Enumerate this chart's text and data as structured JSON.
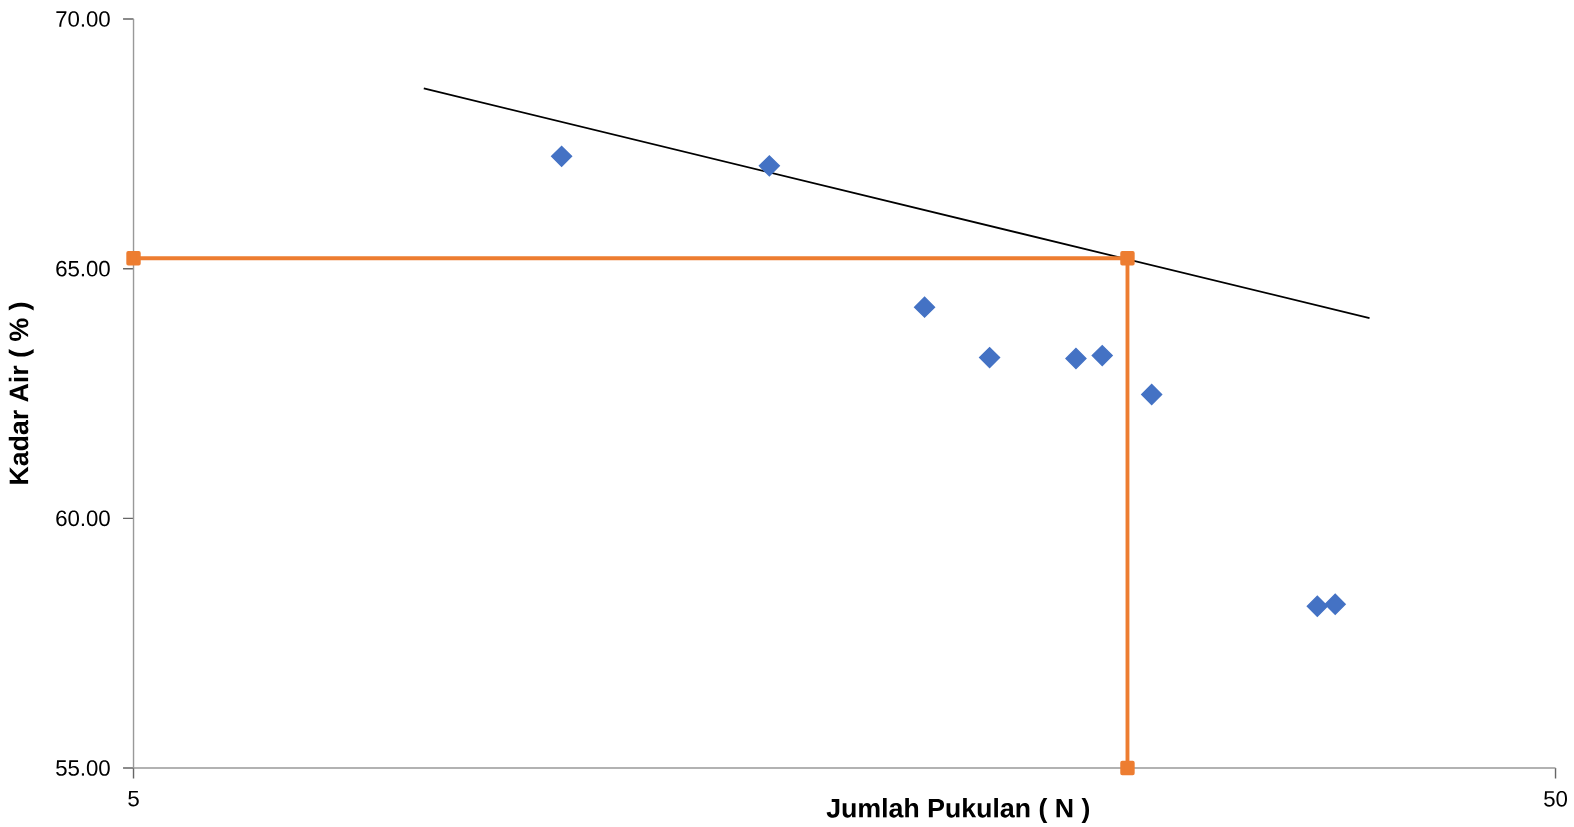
{
  "chart_data": {
    "type": "scatter",
    "xlabel": "Jumlah Pukulan ( N )",
    "ylabel": "Kadar Air ( % )",
    "log": "x",
    "xlim": [
      5,
      50
    ],
    "xticks": [
      5,
      50
    ],
    "ylim": [
      55,
      70
    ],
    "yticks": [
      {
        "value": 55,
        "label": "55.00"
      },
      {
        "value": 60,
        "label": "60.00"
      },
      {
        "value": 65,
        "label": "65.00"
      },
      {
        "value": 70,
        "label": "70.00"
      }
    ],
    "grid": false,
    "series": [
      {
        "color": "#4472c4",
        "marker": "diamond",
        "x": [
          10,
          14,
          18,
          20,
          23,
          24,
          26,
          34,
          35
        ],
        "values": [
          67.25,
          67.06,
          64.23,
          63.22,
          63.2,
          63.26,
          62.48,
          58.24,
          58.28
        ]
      },
      {
        "type": "line",
        "color": "#000000",
        "marker": "none",
        "x": [
          8,
          37
        ],
        "values": [
          68.61,
          64.01
        ]
      },
      {
        "type": "line",
        "color": "#ed7d31",
        "marker": "square",
        "x": [
          5,
          25,
          25
        ],
        "values": [
          65.21,
          65.21,
          55
        ]
      }
    ]
  }
}
